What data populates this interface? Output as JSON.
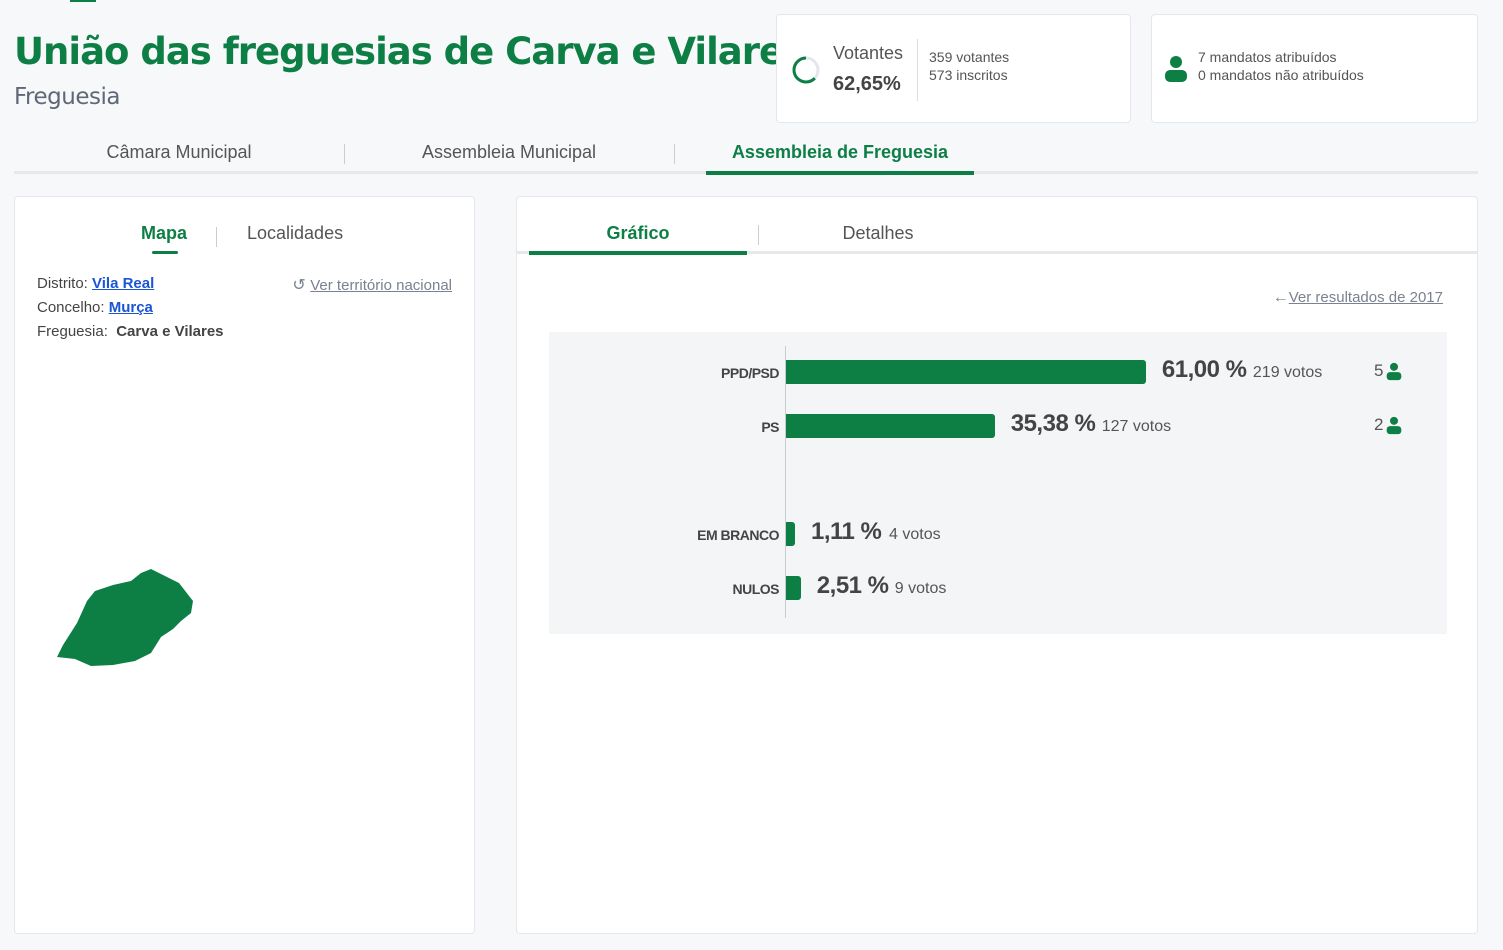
{
  "header": {
    "title": "União das freguesias de Carva e Vilares",
    "subtitle": "Freguesia"
  },
  "turnout": {
    "label": "Votantes",
    "percent": "62,65%",
    "percent_value": 62.65,
    "voters": "359 votantes",
    "registered": "573 inscritos"
  },
  "mandates": {
    "assigned": "7 mandatos atribuídos",
    "unassigned": "0 mandatos não atribuídos"
  },
  "tabs": [
    {
      "label": "Câmara Municipal"
    },
    {
      "label": "Assembleia Municipal"
    },
    {
      "label": "Assembleia de Freguesia",
      "active": true
    }
  ],
  "left": {
    "tabs": [
      {
        "label": "Mapa",
        "active": true
      },
      {
        "label": "Localidades"
      }
    ],
    "distrito_label": "Distrito:",
    "distrito": "Vila Real",
    "concelho_label": "Concelho:",
    "concelho": "Murça",
    "freguesia_label": "Freguesia:",
    "freguesia": "Carva e Vilares",
    "national_link": "Ver território nacional"
  },
  "right": {
    "tabs": [
      {
        "label": "Gráfico",
        "active": true
      },
      {
        "label": "Detalhes"
      }
    ],
    "prev_link": "Ver resultados de 2017"
  },
  "colors": {
    "accent": "#0d7f45"
  },
  "chart_data": {
    "type": "bar",
    "categories": [
      "PPD/PSD",
      "PS",
      "EM BRANCO",
      "NULOS"
    ],
    "values": [
      61.0,
      35.38,
      1.11,
      2.51
    ],
    "pct_labels": [
      "61,00 %",
      "35,38 %",
      "1,11 %",
      "2,51 %"
    ],
    "votes": [
      "219 votos",
      "127 votos",
      "4 votos",
      "9 votos"
    ],
    "mandates": [
      "5",
      "2",
      null,
      null
    ]
  }
}
